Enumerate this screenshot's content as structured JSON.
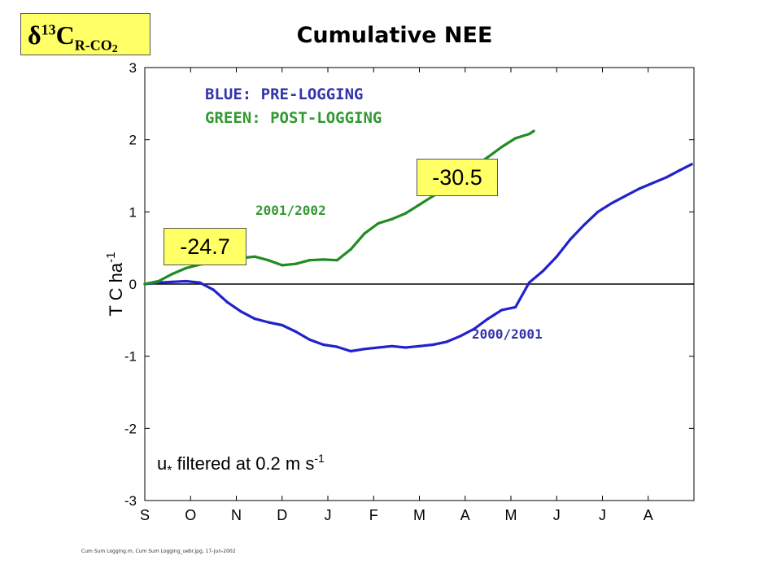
{
  "header": {
    "delta_symbol": "δ",
    "delta_superscript": "13",
    "delta_letter": "C",
    "delta_subscript": "R-CO",
    "delta_subscript_digit": "2",
    "title": "Cumulative NEE"
  },
  "legend": {
    "blue_text": "BLUE: PRE-LOGGING",
    "green_text": "GREEN: POST-LOGGING"
  },
  "callouts": {
    "left_value": "-24.7",
    "right_value": "-30.5"
  },
  "annotation": {
    "ustar_symbol": "u",
    "ustar_sub": "*",
    "ustar_text": " filtered at 0.2 m s",
    "ustar_sup": "-1"
  },
  "footer": {
    "text": "Cum Sum Logging.m, Cum Sum Logging_uebr.jpg, 17-Jun-2002"
  },
  "colors": {
    "blue_series": "#2222cc",
    "green_series": "#228b22",
    "green_highlight": "#99dd33",
    "callout_fill": "#ffff66"
  },
  "chart_data": {
    "type": "line",
    "title": "Cumulative NEE",
    "xlabel": "",
    "ylabel": "T C ha-1",
    "ylim": [
      -3,
      3
    ],
    "xlim": [
      0,
      12
    ],
    "yticks": [
      -3,
      -2,
      -1,
      0,
      1,
      2,
      3
    ],
    "month_labels": [
      "S",
      "O",
      "N",
      "D",
      "J",
      "F",
      "M",
      "A",
      "M",
      "J",
      "J",
      "A"
    ],
    "zero_line": true,
    "series": [
      {
        "name": "2000/2001",
        "color": "#2222cc",
        "x": [
          0,
          0.3,
          0.6,
          0.9,
          1.2,
          1.5,
          1.8,
          2.1,
          2.4,
          2.7,
          3.0,
          3.3,
          3.6,
          3.9,
          4.2,
          4.5,
          4.8,
          5.1,
          5.4,
          5.7,
          6.0,
          6.3,
          6.6,
          6.9,
          7.2,
          7.5,
          7.8,
          8.1,
          8.4,
          8.7,
          9.0,
          9.3,
          9.6,
          9.9,
          10.2,
          10.5,
          10.8,
          11.1,
          11.4,
          11.7,
          11.95
        ],
        "values": [
          0.0,
          0.02,
          0.03,
          0.04,
          0.02,
          -0.08,
          -0.25,
          -0.38,
          -0.48,
          -0.53,
          -0.57,
          -0.66,
          -0.77,
          -0.84,
          -0.87,
          -0.93,
          -0.9,
          -0.88,
          -0.86,
          -0.88,
          -0.86,
          -0.84,
          -0.8,
          -0.72,
          -0.62,
          -0.48,
          -0.36,
          -0.32,
          0.02,
          0.18,
          0.38,
          0.62,
          0.82,
          1.0,
          1.12,
          1.22,
          1.32,
          1.4,
          1.48,
          1.58,
          1.66
        ]
      },
      {
        "name": "2001/2002",
        "color": "#228b22",
        "x": [
          0,
          0.3,
          0.6,
          0.9,
          1.2,
          1.5,
          1.8,
          2.1,
          2.4,
          2.7,
          3.0,
          3.3,
          3.6,
          3.9,
          4.2,
          4.5,
          4.8,
          5.1,
          5.4,
          5.7,
          6.0,
          6.3,
          6.6,
          6.9,
          7.2,
          7.5,
          7.8,
          8.1,
          8.4,
          8.5
        ],
        "values": [
          0.0,
          0.04,
          0.14,
          0.22,
          0.27,
          0.3,
          0.33,
          0.36,
          0.38,
          0.33,
          0.26,
          0.28,
          0.33,
          0.34,
          0.33,
          0.48,
          0.7,
          0.84,
          0.9,
          0.98,
          1.1,
          1.22,
          1.33,
          1.46,
          1.63,
          1.76,
          1.9,
          2.02,
          2.08,
          2.12
        ]
      }
    ]
  }
}
